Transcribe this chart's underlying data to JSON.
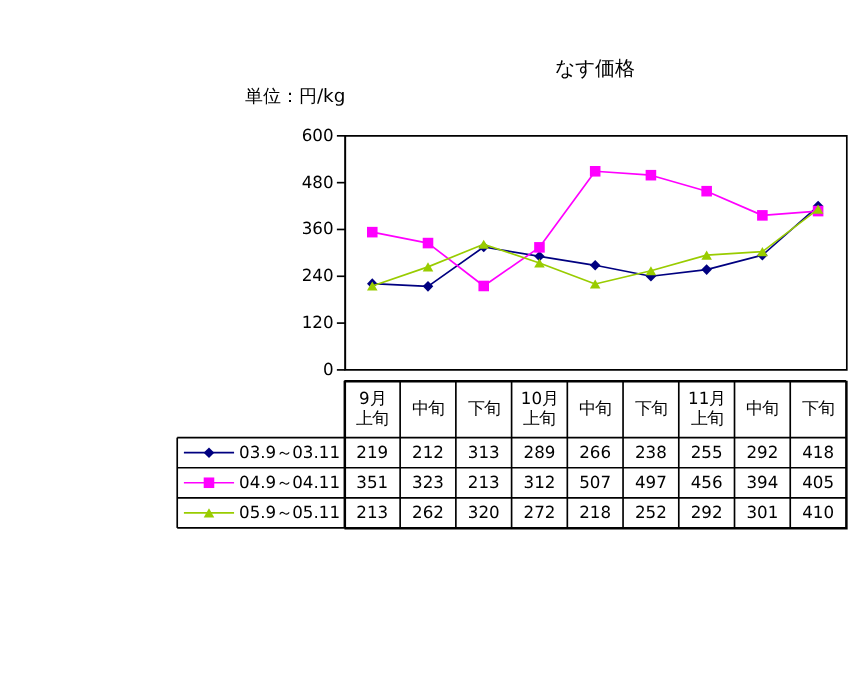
{
  "chart_data": {
    "type": "line",
    "title": "なす価格",
    "ylabel": "単位：円/kg",
    "categories": [
      "9月上旬",
      "中旬",
      "下旬",
      "10月上旬",
      "中旬",
      "下旬",
      "11月上旬",
      "中旬",
      "下旬"
    ],
    "series": [
      {
        "name": "03.9～03.11",
        "color": "#000080",
        "marker": "diamond",
        "values": [
          219,
          212,
          313,
          289,
          266,
          238,
          255,
          292,
          418
        ]
      },
      {
        "name": "04.9～04.11",
        "color": "#ff00ff",
        "marker": "square",
        "values": [
          351,
          323,
          213,
          312,
          507,
          497,
          456,
          394,
          405
        ]
      },
      {
        "name": "05.9～05.11",
        "color": "#99cc00",
        "marker": "triangle",
        "values": [
          213,
          262,
          320,
          272,
          218,
          252,
          292,
          301,
          410
        ]
      }
    ],
    "ylim": [
      0,
      600
    ],
    "yticks": [
      0,
      120,
      240,
      360,
      480,
      600
    ],
    "grid": false,
    "legend": "bottom",
    "data_labels": true,
    "line_style": "solid"
  }
}
